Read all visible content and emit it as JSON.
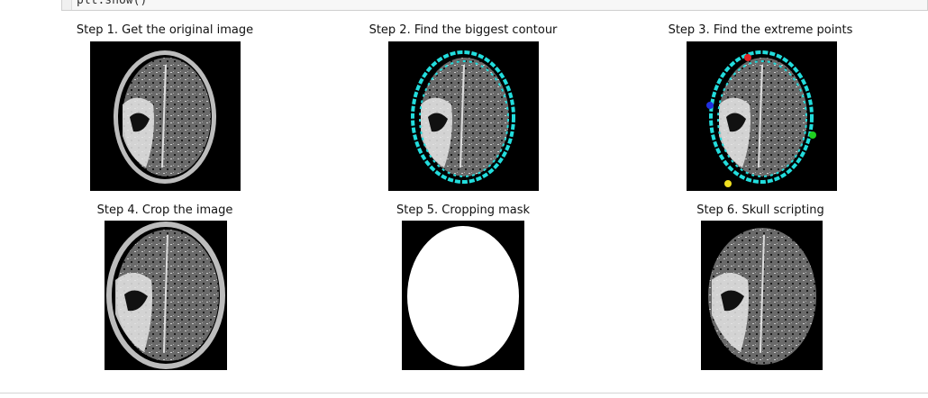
{
  "code_cell": {
    "text": "plt.show()"
  },
  "steps": [
    {
      "title": "Step 1. Get the original image"
    },
    {
      "title": "Step 2. Find the biggest contour"
    },
    {
      "title": "Step 3. Find the extreme points"
    },
    {
      "title": "Step 4. Crop the image"
    },
    {
      "title": "Step 5. Cropping mask"
    },
    {
      "title": "Step 6. Skull scripting"
    }
  ],
  "colors": {
    "contour": "#22dddd",
    "extreme_top": "#e02020",
    "extreme_left": "#2030e0",
    "extreme_right": "#20d020",
    "extreme_bottom": "#f0e020"
  }
}
